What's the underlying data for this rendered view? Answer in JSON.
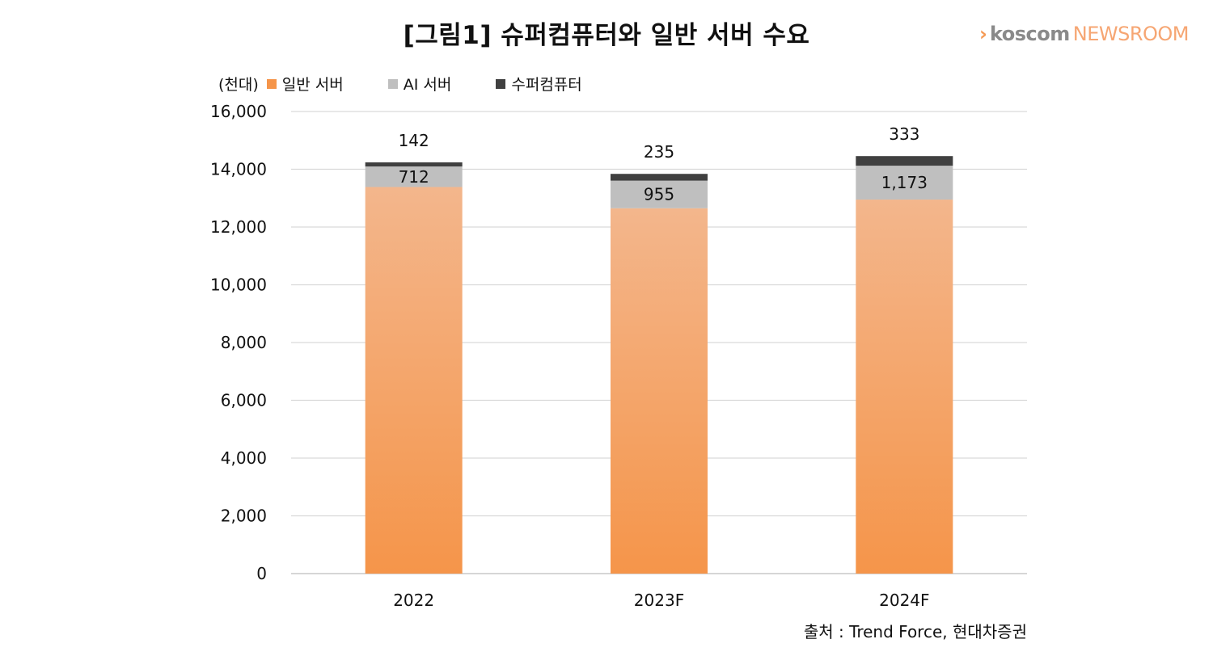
{
  "header": {
    "title": "[그림1] 슈퍼컴퓨터와 일반 서버 수요"
  },
  "logo": {
    "mark": "›",
    "brand": "koscom",
    "suffix": "NEWSROOM"
  },
  "source": "출처 : Trend Force, 현대차증권",
  "chart_data": {
    "type": "bar",
    "stacked": true,
    "unit_label": "(천대)",
    "categories": [
      "2022",
      "2023F",
      "2024F"
    ],
    "series": [
      {
        "name": "일반 서버",
        "color": "#f5954a",
        "values": [
          13385,
          12650,
          12950
        ],
        "labels": [
          "",
          "",
          ""
        ]
      },
      {
        "name": "AI 서버",
        "color": "#bfbfbf",
        "values": [
          712,
          955,
          1173
        ],
        "labels": [
          "712",
          "955",
          "1,173"
        ]
      },
      {
        "name": "수퍼컴퓨터",
        "color": "#404040",
        "values": [
          142,
          235,
          333
        ],
        "labels": [
          "142",
          "235",
          "333"
        ]
      }
    ],
    "yticks": [
      "0",
      "2,000",
      "4,000",
      "6,000",
      "8,000",
      "10,000",
      "12,000",
      "14,000",
      "16,000"
    ],
    "ylim": [
      0,
      16000
    ],
    "grid": true,
    "legend_position": "top-left"
  }
}
